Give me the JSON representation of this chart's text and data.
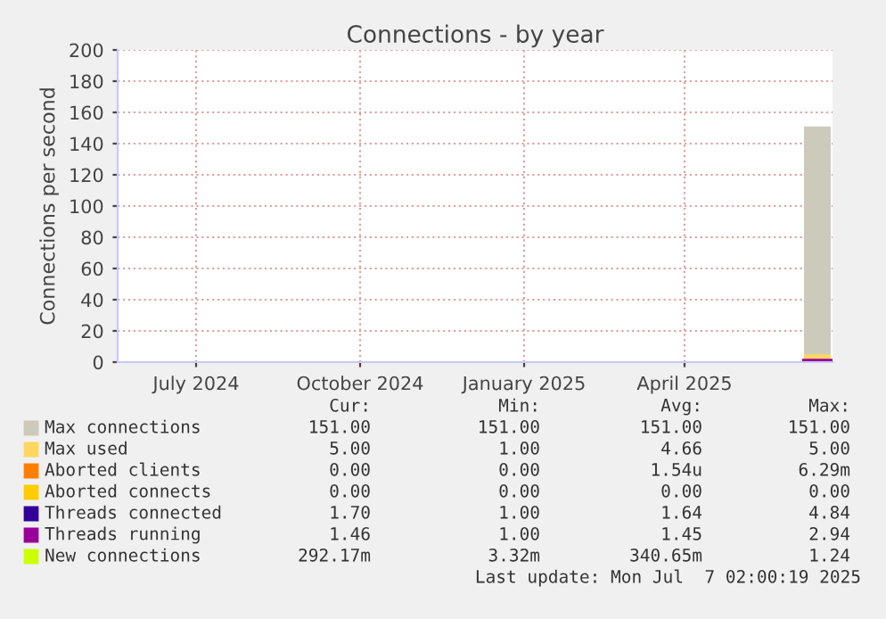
{
  "chart_data": {
    "type": "area",
    "title": "Connections - by year",
    "ylabel": "Connections per second",
    "xlim": [
      "2024-06-02",
      "2025-07-08"
    ],
    "xticks": [
      {
        "value": "2024-07-16",
        "label": "July 2024"
      },
      {
        "value": "2024-10-16",
        "label": "October 2024"
      },
      {
        "value": "2025-01-16",
        "label": "January 2025"
      },
      {
        "value": "2025-04-16",
        "label": "April 2025"
      }
    ],
    "ylim": [
      0,
      200
    ],
    "yticks": [
      0,
      20,
      40,
      60,
      80,
      100,
      120,
      140,
      160,
      180,
      200
    ],
    "grid": true,
    "legend": "bottom",
    "series": [
      {
        "name": "Max connections",
        "color": "#cccbbb",
        "x": [
          "2025-06-22",
          "2025-07-07"
        ],
        "values": [
          151,
          151
        ]
      },
      {
        "name": "Max used",
        "color": "#ffd660",
        "x": [
          "2025-06-22",
          "2025-07-07"
        ],
        "values": [
          5,
          5
        ]
      },
      {
        "name": "Aborted clients",
        "type": "line",
        "color": "#ff7f00",
        "values": [
          null,
          null
        ]
      },
      {
        "name": "Aborted connects",
        "type": "line",
        "color": "#ffcc00",
        "values": [
          null,
          null
        ]
      },
      {
        "name": "Threads connected",
        "type": "line",
        "color": "#330099",
        "values": [
          null,
          null
        ]
      },
      {
        "name": "Threads running",
        "type": "line",
        "color": "#990099",
        "x": [
          "2025-06-22",
          "2025-07-07"
        ],
        "values": [
          1,
          1
        ]
      },
      {
        "name": "New connections",
        "type": "line",
        "color": "#ccff00",
        "values": [
          null,
          null
        ]
      }
    ],
    "annotations": [
      "Cur:",
      "Min:",
      "Avg:",
      "Max:",
      "151.00",
      "151.00",
      "151.00",
      "151.00",
      "5.00",
      "1.00",
      "4.66",
      "5.00",
      "0.00",
      "0.00",
      "1.54u",
      "6.29m",
      "0.00",
      "0.00",
      "0.00",
      "0.00",
      "1.70",
      "1.00",
      "1.64",
      "4.84",
      "1.46",
      "1.00",
      "1.45",
      "2.94",
      "292.17m",
      "3.32m",
      "340.65m",
      "1.24",
      "Last update: Mon Jul  7 02:00:19 2025"
    ]
  }
}
